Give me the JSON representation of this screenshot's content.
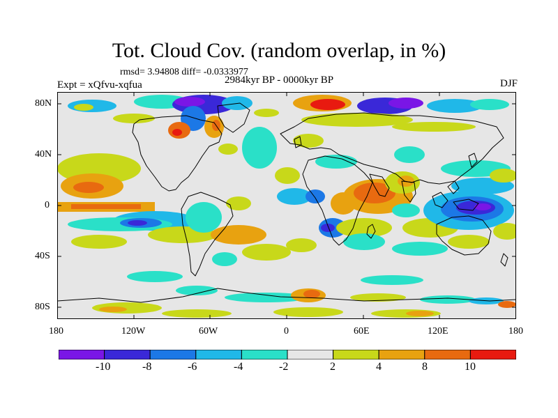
{
  "title": "Tot. Cloud Cov. (random overlap, in %)",
  "stats": "rmsd= 3.94808 diff= -0.0333977",
  "experiment": "Expt = xQfvu-xqfua",
  "period": "2984kyr BP - 0000kyr BP",
  "season": "DJF",
  "lat_labels": [
    "80N",
    "40N",
    "0",
    "40S",
    "80S"
  ],
  "lon_labels": [
    "180",
    "120W",
    "60W",
    "0",
    "60E",
    "120E",
    "180"
  ],
  "colorbar": {
    "labels": [
      "-10",
      "-8",
      "-6",
      "-4",
      "-2",
      "2",
      "4",
      "8",
      "10"
    ],
    "colors": [
      "#7a16e6",
      "#3a28d8",
      "#1c78e6",
      "#20b8e8",
      "#2ae0c8",
      "#e6e6e6",
      "#c8d81a",
      "#e8a210",
      "#e86a10",
      "#e81a10"
    ]
  },
  "colors": {
    "land": "#e6e6e6",
    "coast": "#000000"
  }
}
